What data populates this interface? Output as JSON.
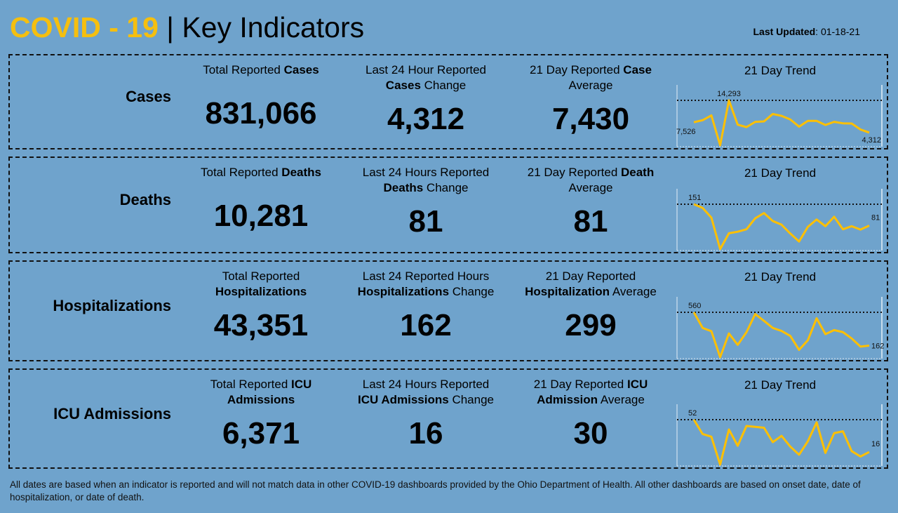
{
  "header": {
    "title_accent": "COVID - 19",
    "title_rest": " | Key Indicators",
    "updated_label": "Last Updated",
    "updated_value": ": 01-18-21"
  },
  "colors": {
    "background": "#6fa3cc",
    "accent": "#f5bf0f",
    "line": "#ffc000"
  },
  "trend_label": "21 Day Trend",
  "rows": [
    {
      "title": "Cases",
      "cols": [
        {
          "label": [
            [
              {
                "t": "Total Reported ",
                "b": false
              },
              {
                "t": "Cases",
                "b": true
              }
            ]
          ],
          "value": "831,066"
        },
        {
          "label": [
            [
              {
                "t": "Last 24 Hour Reported",
                "b": false
              }
            ],
            [
              {
                "t": "Cases",
                "b": true
              },
              {
                "t": " Change",
                "b": false
              }
            ]
          ],
          "value": "4,312"
        },
        {
          "label": [
            [
              {
                "t": "21 Day Reported ",
                "b": false
              },
              {
                "t": "Case",
                "b": true
              }
            ],
            [
              {
                "t": "Average",
                "b": false
              }
            ]
          ],
          "value": "7,430"
        }
      ],
      "trend": {
        "first_label": "7,526",
        "max_label": "14,293",
        "last_label": "4,312",
        "values": [
          7526,
          8155,
          9633,
          395,
          14293,
          6751,
          6012,
          7638,
          7785,
          10076,
          9485,
          8376,
          6160,
          7933,
          7933,
          6677,
          7638,
          7194,
          7120,
          5273,
          4312
        ]
      }
    },
    {
      "title": "Deaths",
      "cols": [
        {
          "label": [
            [
              {
                "t": "Total Reported ",
                "b": false
              },
              {
                "t": "Deaths",
                "b": true
              }
            ]
          ],
          "value": "10,281"
        },
        {
          "label": [
            [
              {
                "t": "Last 24 Hours Reported",
                "b": false
              }
            ],
            [
              {
                "t": "Deaths",
                "b": true
              },
              {
                "t": " Change",
                "b": false
              }
            ]
          ],
          "value": "81"
        },
        {
          "label": [
            [
              {
                "t": "21 Day Reported ",
                "b": false
              },
              {
                "t": "Death",
                "b": true
              }
            ],
            [
              {
                "t": "Average",
                "b": false
              }
            ]
          ],
          "value": "81"
        }
      ],
      "trend": {
        "max_label": "151",
        "last_label": "81",
        "values": [
          151,
          139,
          107,
          4,
          56,
          61,
          69,
          105,
          122,
          96,
          84,
          55,
          29,
          77,
          101,
          79,
          110,
          69,
          79,
          68,
          81
        ]
      }
    },
    {
      "title": "Hospitalizations",
      "cols": [
        {
          "label": [
            [
              {
                "t": "Total Reported",
                "b": false
              }
            ],
            [
              {
                "t": "Hospitalizations",
                "b": true
              }
            ]
          ],
          "value": "43,351"
        },
        {
          "label": [
            [
              {
                "t": "Last 24 Reported Hours",
                "b": false
              }
            ],
            [
              {
                "t": "Hospitalizations",
                "b": true
              },
              {
                "t": " Change",
                "b": false
              }
            ]
          ],
          "value": "162"
        },
        {
          "label": [
            [
              {
                "t": "21 Day Reported",
                "b": false
              }
            ],
            [
              {
                "t": "Hospitalization",
                "b": true
              },
              {
                "t": " Average",
                "b": false
              }
            ]
          ],
          "value": "299"
        }
      ],
      "trend": {
        "max_label": "560",
        "last_label": "162",
        "values": [
          560,
          373,
          334,
          23,
          307,
          171,
          322,
          539,
          458,
          373,
          337,
          277,
          111,
          226,
          488,
          299,
          347,
          323,
          247,
          150,
          162
        ]
      }
    },
    {
      "title": "ICU Admissions",
      "cols": [
        {
          "label": [
            [
              {
                "t": "Total Reported ",
                "b": false
              },
              {
                "t": "ICU",
                "b": true
              }
            ],
            [
              {
                "t": "Admissions",
                "b": true
              }
            ]
          ],
          "value": "6,371"
        },
        {
          "label": [
            [
              {
                "t": "Last 24 Hours Reported",
                "b": false
              }
            ],
            [
              {
                "t": "ICU Admissions",
                "b": true
              },
              {
                "t": " Change",
                "b": false
              }
            ]
          ],
          "value": "16"
        },
        {
          "label": [
            [
              {
                "t": "21 Day Reported ",
                "b": false
              },
              {
                "t": "ICU",
                "b": true
              }
            ],
            [
              {
                "t": "Admission",
                "b": true
              },
              {
                "t": " Average",
                "b": false
              }
            ]
          ],
          "value": "30"
        }
      ],
      "trend": {
        "max_label": "52",
        "last_label": "16",
        "values": [
          52,
          36,
          33,
          2,
          41,
          23,
          45,
          44,
          43,
          27,
          34,
          22,
          13,
          28,
          49,
          15,
          37,
          39,
          17,
          11,
          16
        ]
      }
    }
  ],
  "footer": "All dates are based when an indicator is reported and will not match data in other COVID-19 dashboards provided by the Ohio Department of Health. All other dashboards are based on onset date, date of hospitalization, or date of death."
}
